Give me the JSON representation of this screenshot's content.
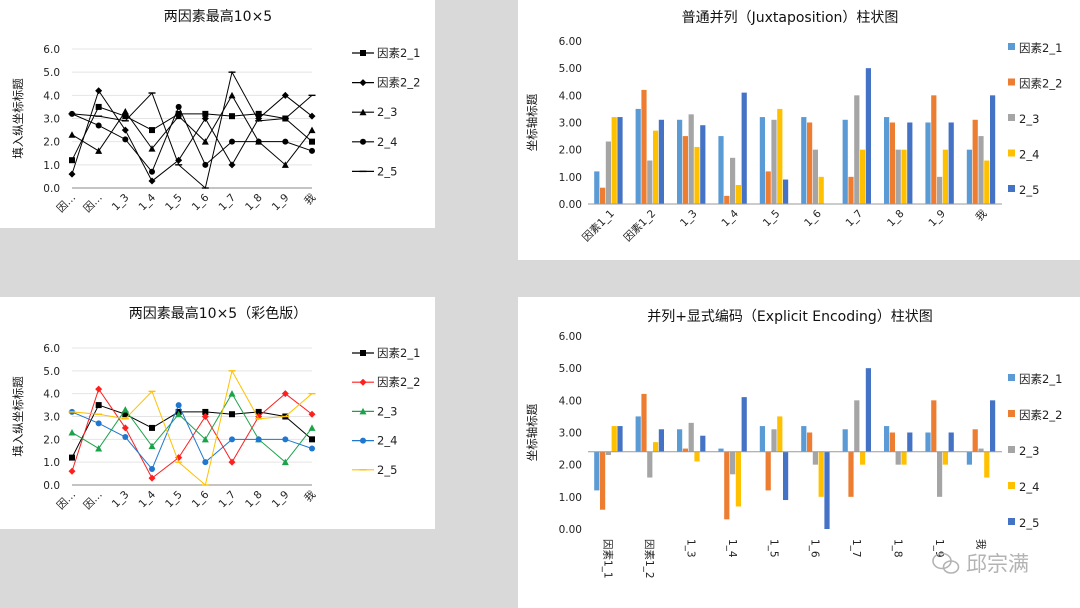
{
  "chart_data": [
    {
      "id": "tl",
      "type": "line",
      "title": "两因素最高10×5",
      "ylabel": "填入纵坐标标题",
      "ylim": [
        0,
        6
      ],
      "yticks": [
        "0.0",
        "1.0",
        "2.0",
        "3.0",
        "4.0",
        "5.0",
        "6.0"
      ],
      "categories": [
        "因…",
        "因…",
        "1_3",
        "1_4",
        "1_5",
        "1_6",
        "1_7",
        "1_8",
        "1_9",
        "我"
      ],
      "colored": false,
      "legend_position": "right",
      "series": [
        {
          "name": "因素2_1",
          "marker": "square",
          "color": "#000000",
          "values": [
            1.2,
            3.5,
            3.1,
            2.5,
            3.2,
            3.2,
            3.1,
            3.2,
            3.0,
            2.0
          ]
        },
        {
          "name": "因素2_2",
          "marker": "diamond",
          "color": "#000000",
          "values": [
            0.6,
            4.2,
            2.5,
            0.3,
            1.2,
            3.0,
            1.0,
            3.0,
            4.0,
            3.1
          ]
        },
        {
          "name": "2_3",
          "marker": "triangle",
          "color": "#000000",
          "values": [
            2.3,
            1.6,
            3.3,
            1.7,
            3.1,
            2.0,
            4.0,
            2.0,
            1.0,
            2.5
          ]
        },
        {
          "name": "2_4",
          "marker": "circle",
          "color": "#000000",
          "values": [
            3.2,
            2.7,
            2.1,
            0.7,
            3.5,
            1.0,
            2.0,
            2.0,
            2.0,
            1.6
          ]
        },
        {
          "name": "2_5",
          "marker": "dash",
          "color": "#000000",
          "values": [
            3.2,
            3.1,
            2.9,
            4.1,
            1.0,
            0.0,
            5.0,
            2.9,
            3.0,
            4.0
          ]
        }
      ]
    },
    {
      "id": "bl",
      "type": "line",
      "title": "两因素最高10×5（彩色版）",
      "ylabel": "填入纵坐标标题",
      "ylim": [
        0,
        6
      ],
      "yticks": [
        "0.0",
        "1.0",
        "2.0",
        "3.0",
        "4.0",
        "5.0",
        "6.0"
      ],
      "categories": [
        "因…",
        "因…",
        "1_3",
        "1_4",
        "1_5",
        "1_6",
        "1_7",
        "1_8",
        "1_9",
        "我"
      ],
      "colored": true,
      "legend_position": "right",
      "series": [
        {
          "name": "因素2_1",
          "marker": "square",
          "color": "#000000",
          "values": [
            1.2,
            3.5,
            3.1,
            2.5,
            3.2,
            3.2,
            3.1,
            3.2,
            3.0,
            2.0
          ]
        },
        {
          "name": "因素2_2",
          "marker": "diamond",
          "color": "#ff1f1f",
          "values": [
            0.6,
            4.2,
            2.5,
            0.3,
            1.2,
            3.0,
            1.0,
            3.0,
            4.0,
            3.1
          ]
        },
        {
          "name": "2_3",
          "marker": "triangle",
          "color": "#1aa34a",
          "values": [
            2.3,
            1.6,
            3.3,
            1.7,
            3.1,
            2.0,
            4.0,
            2.0,
            1.0,
            2.5
          ]
        },
        {
          "name": "2_4",
          "marker": "circle",
          "color": "#1f77d0",
          "values": [
            3.2,
            2.7,
            2.1,
            0.7,
            3.5,
            1.0,
            2.0,
            2.0,
            2.0,
            1.6
          ]
        },
        {
          "name": "2_5",
          "marker": "dash",
          "color": "#ffc000",
          "values": [
            3.2,
            3.1,
            2.9,
            4.1,
            1.0,
            0.0,
            5.0,
            2.9,
            3.0,
            4.0
          ]
        }
      ]
    },
    {
      "id": "tr",
      "type": "bar",
      "title": "普通并列（Juxtaposition）柱状图",
      "ylabel": "坐标轴标题",
      "ylim": [
        0,
        6
      ],
      "yticks": [
        "0.00",
        "1.00",
        "2.00",
        "3.00",
        "4.00",
        "5.00",
        "6.00"
      ],
      "baseline": 0,
      "categories": [
        "因素1_1",
        "因素1_2",
        "1_3",
        "1_4",
        "1_5",
        "1_6",
        "1_7",
        "1_8",
        "1_9",
        "我"
      ],
      "legend_position": "right",
      "series": [
        {
          "name": "因素2_1",
          "color": "#5b9bd5",
          "values": [
            1.2,
            3.5,
            3.1,
            2.5,
            3.2,
            3.2,
            3.1,
            3.2,
            3.0,
            2.0
          ]
        },
        {
          "name": "因素2_2",
          "color": "#ed7d31",
          "values": [
            0.6,
            4.2,
            2.5,
            0.3,
            1.2,
            3.0,
            1.0,
            3.0,
            4.0,
            3.1
          ]
        },
        {
          "name": "2_3",
          "color": "#a5a5a5",
          "values": [
            2.3,
            1.6,
            3.3,
            1.7,
            3.1,
            2.0,
            4.0,
            2.0,
            1.0,
            2.5
          ]
        },
        {
          "name": "2_4",
          "color": "#ffc000",
          "values": [
            3.2,
            2.7,
            2.1,
            0.7,
            3.5,
            1.0,
            2.0,
            2.0,
            2.0,
            1.6
          ]
        },
        {
          "name": "2_5",
          "color": "#4472c4",
          "values": [
            3.2,
            3.1,
            2.9,
            4.1,
            0.9,
            0.0,
            5.0,
            3.0,
            3.0,
            4.0
          ]
        }
      ]
    },
    {
      "id": "br",
      "type": "bar",
      "title": "并列+显式编码（Explicit Encoding）柱状图",
      "ylabel": "坐标轴标题",
      "ylim": [
        0,
        6
      ],
      "yticks": [
        "0.00",
        "1.00",
        "2.00",
        "3.00",
        "4.00",
        "5.00",
        "6.00"
      ],
      "baseline": 2.4,
      "categories": [
        "因素1_1",
        "因素1_2",
        "1_3",
        "1_4",
        "1_5",
        "1_6",
        "1_7",
        "1_8",
        "1_9",
        "我"
      ],
      "legend_position": "right",
      "series": [
        {
          "name": "因素2_1",
          "color": "#5b9bd5",
          "values": [
            1.2,
            3.5,
            3.1,
            2.5,
            3.2,
            3.2,
            3.1,
            3.2,
            3.0,
            2.0
          ]
        },
        {
          "name": "因素2_2",
          "color": "#ed7d31",
          "values": [
            0.6,
            4.2,
            2.5,
            0.3,
            1.2,
            3.0,
            1.0,
            3.0,
            4.0,
            3.1
          ]
        },
        {
          "name": "2_3",
          "color": "#a5a5a5",
          "values": [
            2.3,
            1.6,
            3.3,
            1.7,
            3.1,
            2.0,
            4.0,
            2.0,
            1.0,
            2.5
          ]
        },
        {
          "name": "2_4",
          "color": "#ffc000",
          "values": [
            3.2,
            2.7,
            2.1,
            0.7,
            3.5,
            1.0,
            2.0,
            2.0,
            2.0,
            1.6
          ]
        },
        {
          "name": "2_5",
          "color": "#4472c4",
          "values": [
            3.2,
            3.1,
            2.9,
            4.1,
            0.9,
            0.0,
            5.0,
            3.0,
            3.0,
            4.0
          ]
        }
      ]
    }
  ],
  "watermark": {
    "text": "邱宗满",
    "icon": "wechat-icon"
  }
}
